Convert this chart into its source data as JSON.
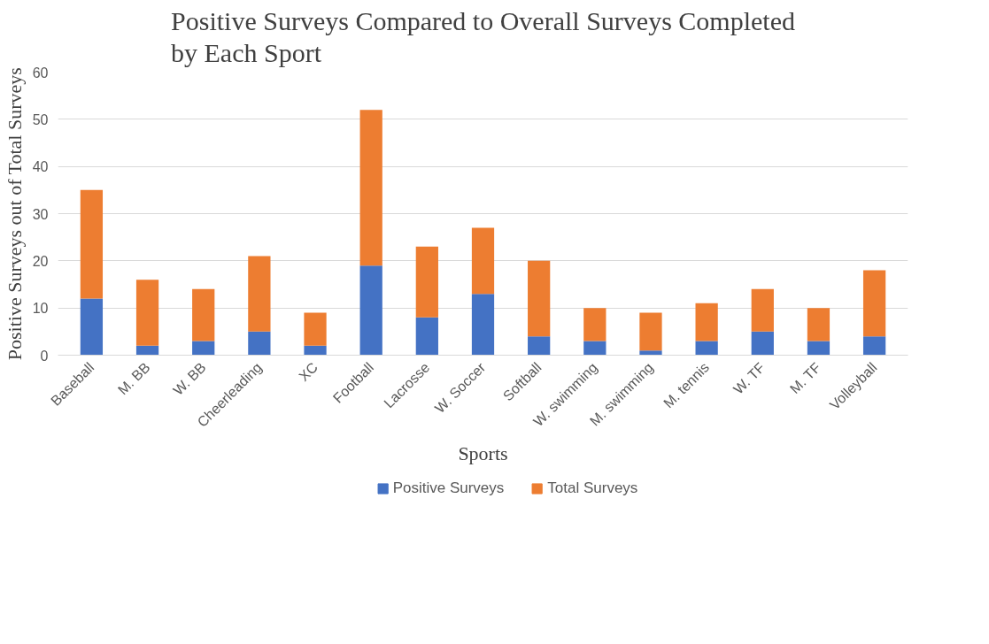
{
  "chart_data": {
    "type": "bar",
    "title": "Positive Surveys Compared to Overall Surveys Completed by Each Sport",
    "xlabel": "Sports",
    "ylabel": "Positive Surveys out of Total Surveys",
    "categories": [
      "Baseball",
      "M. BB",
      "W. BB",
      "Cheerleading",
      "XC",
      "Football",
      "Lacrosse",
      "W. Soccer",
      "Softball",
      "W. swimming",
      "M. swimming",
      "M. tennis",
      "W. TF",
      "M. TF",
      "Volleyball"
    ],
    "series": [
      {
        "name": "Positive Surveys",
        "color": "#4472c4",
        "values": [
          12,
          2,
          3,
          5,
          2,
          19,
          8,
          13,
          4,
          3,
          1,
          3,
          5,
          3,
          4
        ]
      },
      {
        "name": "Total Surveys",
        "color": "#ed7d31",
        "values": [
          23,
          14,
          11,
          16,
          7,
          33,
          15,
          14,
          16,
          7,
          8,
          8,
          9,
          7,
          14
        ]
      }
    ],
    "stacked": true,
    "ylim": [
      0,
      60
    ],
    "yticks": [
      0,
      10,
      20,
      30,
      40,
      50,
      60
    ],
    "grid": "y",
    "legend": "bottom"
  }
}
